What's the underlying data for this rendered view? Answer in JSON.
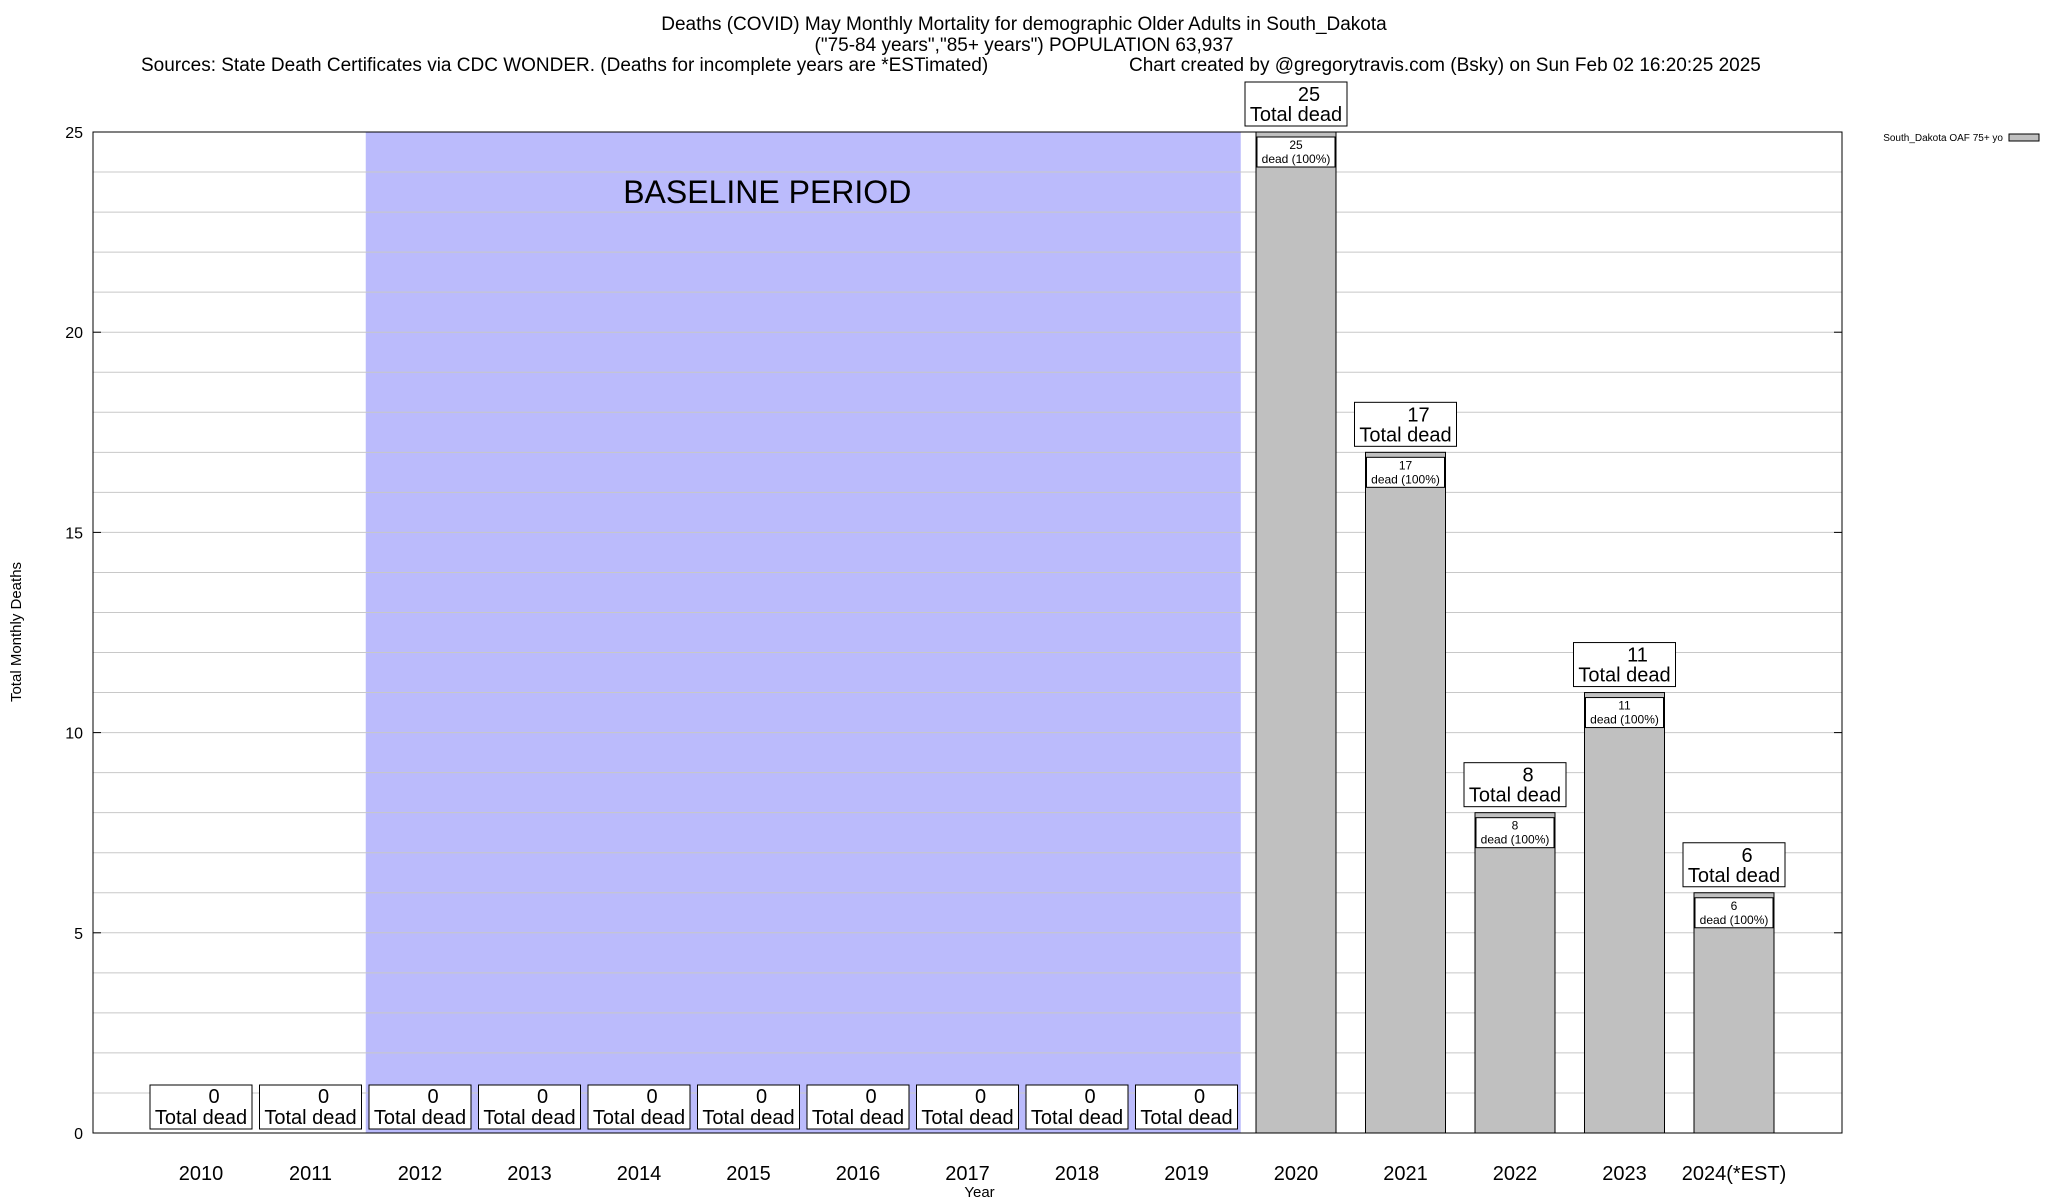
{
  "header": {
    "title_line1": "Deaths (COVID) May Monthly Mortality for demographic Older Adults in South_Dakota",
    "title_line2": "(\"75-84 years\",\"85+ years\") POPULATION 63,937",
    "sources": "Sources: State Death Certificates via CDC WONDER. (Deaths for incomplete years are *ESTimated)",
    "credit": "Chart created by @gregorytravis.com (Bsky) on Sun Feb 02 16:20:25 2025"
  },
  "chart_data": {
    "type": "bar",
    "title": "Deaths (COVID) May Monthly Mortality for demographic Older Adults in South_Dakota",
    "xlabel": "Year",
    "ylabel": "Total Monthly Deaths",
    "ylim": [
      0,
      25
    ],
    "yticks": [
      0,
      5,
      10,
      15,
      20,
      25
    ],
    "grid": true,
    "legend_position": "top-right",
    "categories": [
      "2010",
      "2011",
      "2012",
      "2013",
      "2014",
      "2015",
      "2016",
      "2017",
      "2018",
      "2019",
      "2020",
      "2021",
      "2022",
      "2023",
      "2024(*EST)"
    ],
    "series": [
      {
        "name": "South_Dakota OAF 75+ yo",
        "values": [
          0,
          0,
          0,
          0,
          0,
          0,
          0,
          0,
          0,
          0,
          25,
          17,
          8,
          11,
          6
        ],
        "color": "#c0c0c0"
      }
    ],
    "total_label_suffix": "Total dead",
    "inner_label_suffix": "dead (100%)",
    "baseline": {
      "label": "BASELINE PERIOD",
      "start": "2012",
      "end": "2019",
      "color": "#bbbbfc"
    }
  }
}
